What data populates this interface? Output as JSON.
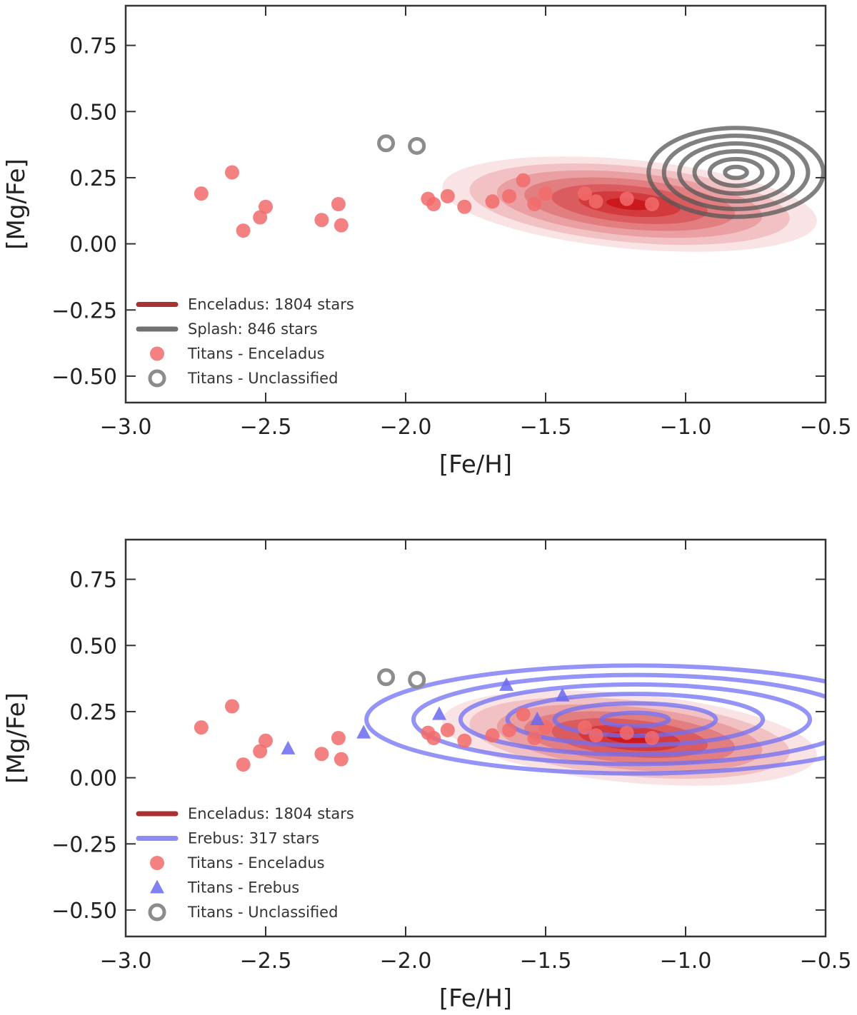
{
  "chart_data": [
    {
      "type": "scatter",
      "title": "",
      "xlabel": "[Fe/H]",
      "ylabel": "[Mg/Fe]",
      "xlim": [
        -3.0,
        -0.5
      ],
      "ylim": [
        -0.6,
        0.9
      ],
      "x_ticks": [
        -3.0,
        -2.5,
        -2.0,
        -1.5,
        -1.0,
        -0.5
      ],
      "x_tick_labels": [
        "−3.0",
        "−2.5",
        "−2.0",
        "−1.5",
        "−1.0",
        "−0.5"
      ],
      "y_ticks": [
        0.75,
        0.5,
        0.25,
        0.0,
        -0.25,
        -0.5
      ],
      "y_tick_labels": [
        "0.75",
        "0.50",
        "0.25",
        "0.00",
        "−0.25",
        "−0.50"
      ],
      "grid": false,
      "legend_position": "lower-left",
      "legend": [
        {
          "label": "Enceladus: 1804 stars",
          "kind": "line",
          "color": "#a83232"
        },
        {
          "label": "Splash: 846 stars",
          "kind": "line",
          "color": "#707070"
        },
        {
          "label": "Titans - Enceladus",
          "kind": "circle",
          "color": "#f26b6b"
        },
        {
          "label": "Titans - Unclassified",
          "kind": "ring",
          "color": "#8c8c8c"
        }
      ],
      "density_contours": [
        {
          "name": "Enceladus",
          "style": "filled",
          "color": "#cb181d",
          "center": [
            -1.2,
            0.15
          ],
          "spread": [
            0.28,
            0.07
          ],
          "tilt": -0.1,
          "levels": 7
        },
        {
          "name": "Splash",
          "style": "lines",
          "color": "#555555",
          "center": [
            -0.82,
            0.27
          ],
          "spread": [
            0.13,
            0.07
          ],
          "tilt": 0.0,
          "levels": 6
        }
      ],
      "series": [
        {
          "name": "Titans - Enceladus",
          "marker": "circle",
          "color": "#f26b6b",
          "points": [
            [
              -2.73,
              0.19
            ],
            [
              -2.62,
              0.27
            ],
            [
              -2.58,
              0.05
            ],
            [
              -2.52,
              0.1
            ],
            [
              -2.5,
              0.14
            ],
            [
              -2.3,
              0.09
            ],
            [
              -2.24,
              0.15
            ],
            [
              -2.23,
              0.07
            ],
            [
              -1.92,
              0.17
            ],
            [
              -1.9,
              0.15
            ],
            [
              -1.85,
              0.18
            ],
            [
              -1.79,
              0.14
            ],
            [
              -1.69,
              0.16
            ],
            [
              -1.63,
              0.18
            ],
            [
              -1.58,
              0.24
            ],
            [
              -1.54,
              0.15
            ],
            [
              -1.5,
              0.19
            ],
            [
              -1.36,
              0.19
            ],
            [
              -1.32,
              0.16
            ],
            [
              -1.21,
              0.17
            ],
            [
              -1.12,
              0.15
            ]
          ]
        },
        {
          "name": "Titans - Unclassified",
          "marker": "ring",
          "color": "#8c8c8c",
          "points": [
            [
              -2.07,
              0.38
            ],
            [
              -1.96,
              0.37
            ]
          ]
        }
      ]
    },
    {
      "type": "scatter",
      "title": "",
      "xlabel": "[Fe/H]",
      "ylabel": "[Mg/Fe]",
      "xlim": [
        -3.0,
        -0.5
      ],
      "ylim": [
        -0.6,
        0.9
      ],
      "x_ticks": [
        -3.0,
        -2.5,
        -2.0,
        -1.5,
        -1.0,
        -0.5
      ],
      "x_tick_labels": [
        "−3.0",
        "−2.5",
        "−2.0",
        "−1.5",
        "−1.0",
        "−0.5"
      ],
      "y_ticks": [
        0.75,
        0.5,
        0.25,
        0.0,
        -0.25,
        -0.5
      ],
      "y_tick_labels": [
        "0.75",
        "0.50",
        "0.25",
        "0.00",
        "−0.25",
        "−0.50"
      ],
      "grid": false,
      "legend_position": "lower-left",
      "legend": [
        {
          "label": "Enceladus: 1804 stars",
          "kind": "line",
          "color": "#a83232"
        },
        {
          "label": "Erebus: 317 stars",
          "kind": "line",
          "color": "#8c8cf2"
        },
        {
          "label": "Titans - Enceladus",
          "kind": "circle",
          "color": "#f26b6b"
        },
        {
          "label": "Titans - Erebus",
          "kind": "triangle",
          "color": "#6a6af0"
        },
        {
          "label": "Titans - Unclassified",
          "kind": "ring",
          "color": "#8c8c8c"
        }
      ],
      "density_contours": [
        {
          "name": "Enceladus",
          "style": "filled",
          "color": "#cb181d",
          "center": [
            -1.2,
            0.15
          ],
          "spread": [
            0.28,
            0.07
          ],
          "tilt": -0.1,
          "levels": 7
        },
        {
          "name": "Erebus",
          "style": "lines",
          "color": "#6f6ff5",
          "center": [
            -1.18,
            0.22
          ],
          "spread": [
            0.4,
            0.085
          ],
          "tilt": 0.0,
          "levels": 6
        }
      ],
      "series": [
        {
          "name": "Titans - Enceladus",
          "marker": "circle",
          "color": "#f26b6b",
          "points": [
            [
              -2.73,
              0.19
            ],
            [
              -2.62,
              0.27
            ],
            [
              -2.58,
              0.05
            ],
            [
              -2.52,
              0.1
            ],
            [
              -2.5,
              0.14
            ],
            [
              -2.3,
              0.09
            ],
            [
              -2.24,
              0.15
            ],
            [
              -2.23,
              0.07
            ],
            [
              -1.92,
              0.17
            ],
            [
              -1.9,
              0.15
            ],
            [
              -1.85,
              0.18
            ],
            [
              -1.79,
              0.14
            ],
            [
              -1.69,
              0.16
            ],
            [
              -1.63,
              0.18
            ],
            [
              -1.58,
              0.24
            ],
            [
              -1.54,
              0.15
            ],
            [
              -1.5,
              0.19
            ],
            [
              -1.36,
              0.19
            ],
            [
              -1.32,
              0.16
            ],
            [
              -1.21,
              0.17
            ],
            [
              -1.12,
              0.15
            ]
          ]
        },
        {
          "name": "Titans - Erebus",
          "marker": "triangle",
          "color": "#6a6af0",
          "points": [
            [
              -2.42,
              0.11
            ],
            [
              -2.15,
              0.17
            ],
            [
              -1.88,
              0.24
            ],
            [
              -1.64,
              0.35
            ],
            [
              -1.53,
              0.22
            ],
            [
              -1.44,
              0.31
            ]
          ]
        },
        {
          "name": "Titans - Unclassified",
          "marker": "ring",
          "color": "#8c8c8c",
          "points": [
            [
              -2.07,
              0.38
            ],
            [
              -1.96,
              0.37
            ]
          ]
        }
      ]
    }
  ]
}
